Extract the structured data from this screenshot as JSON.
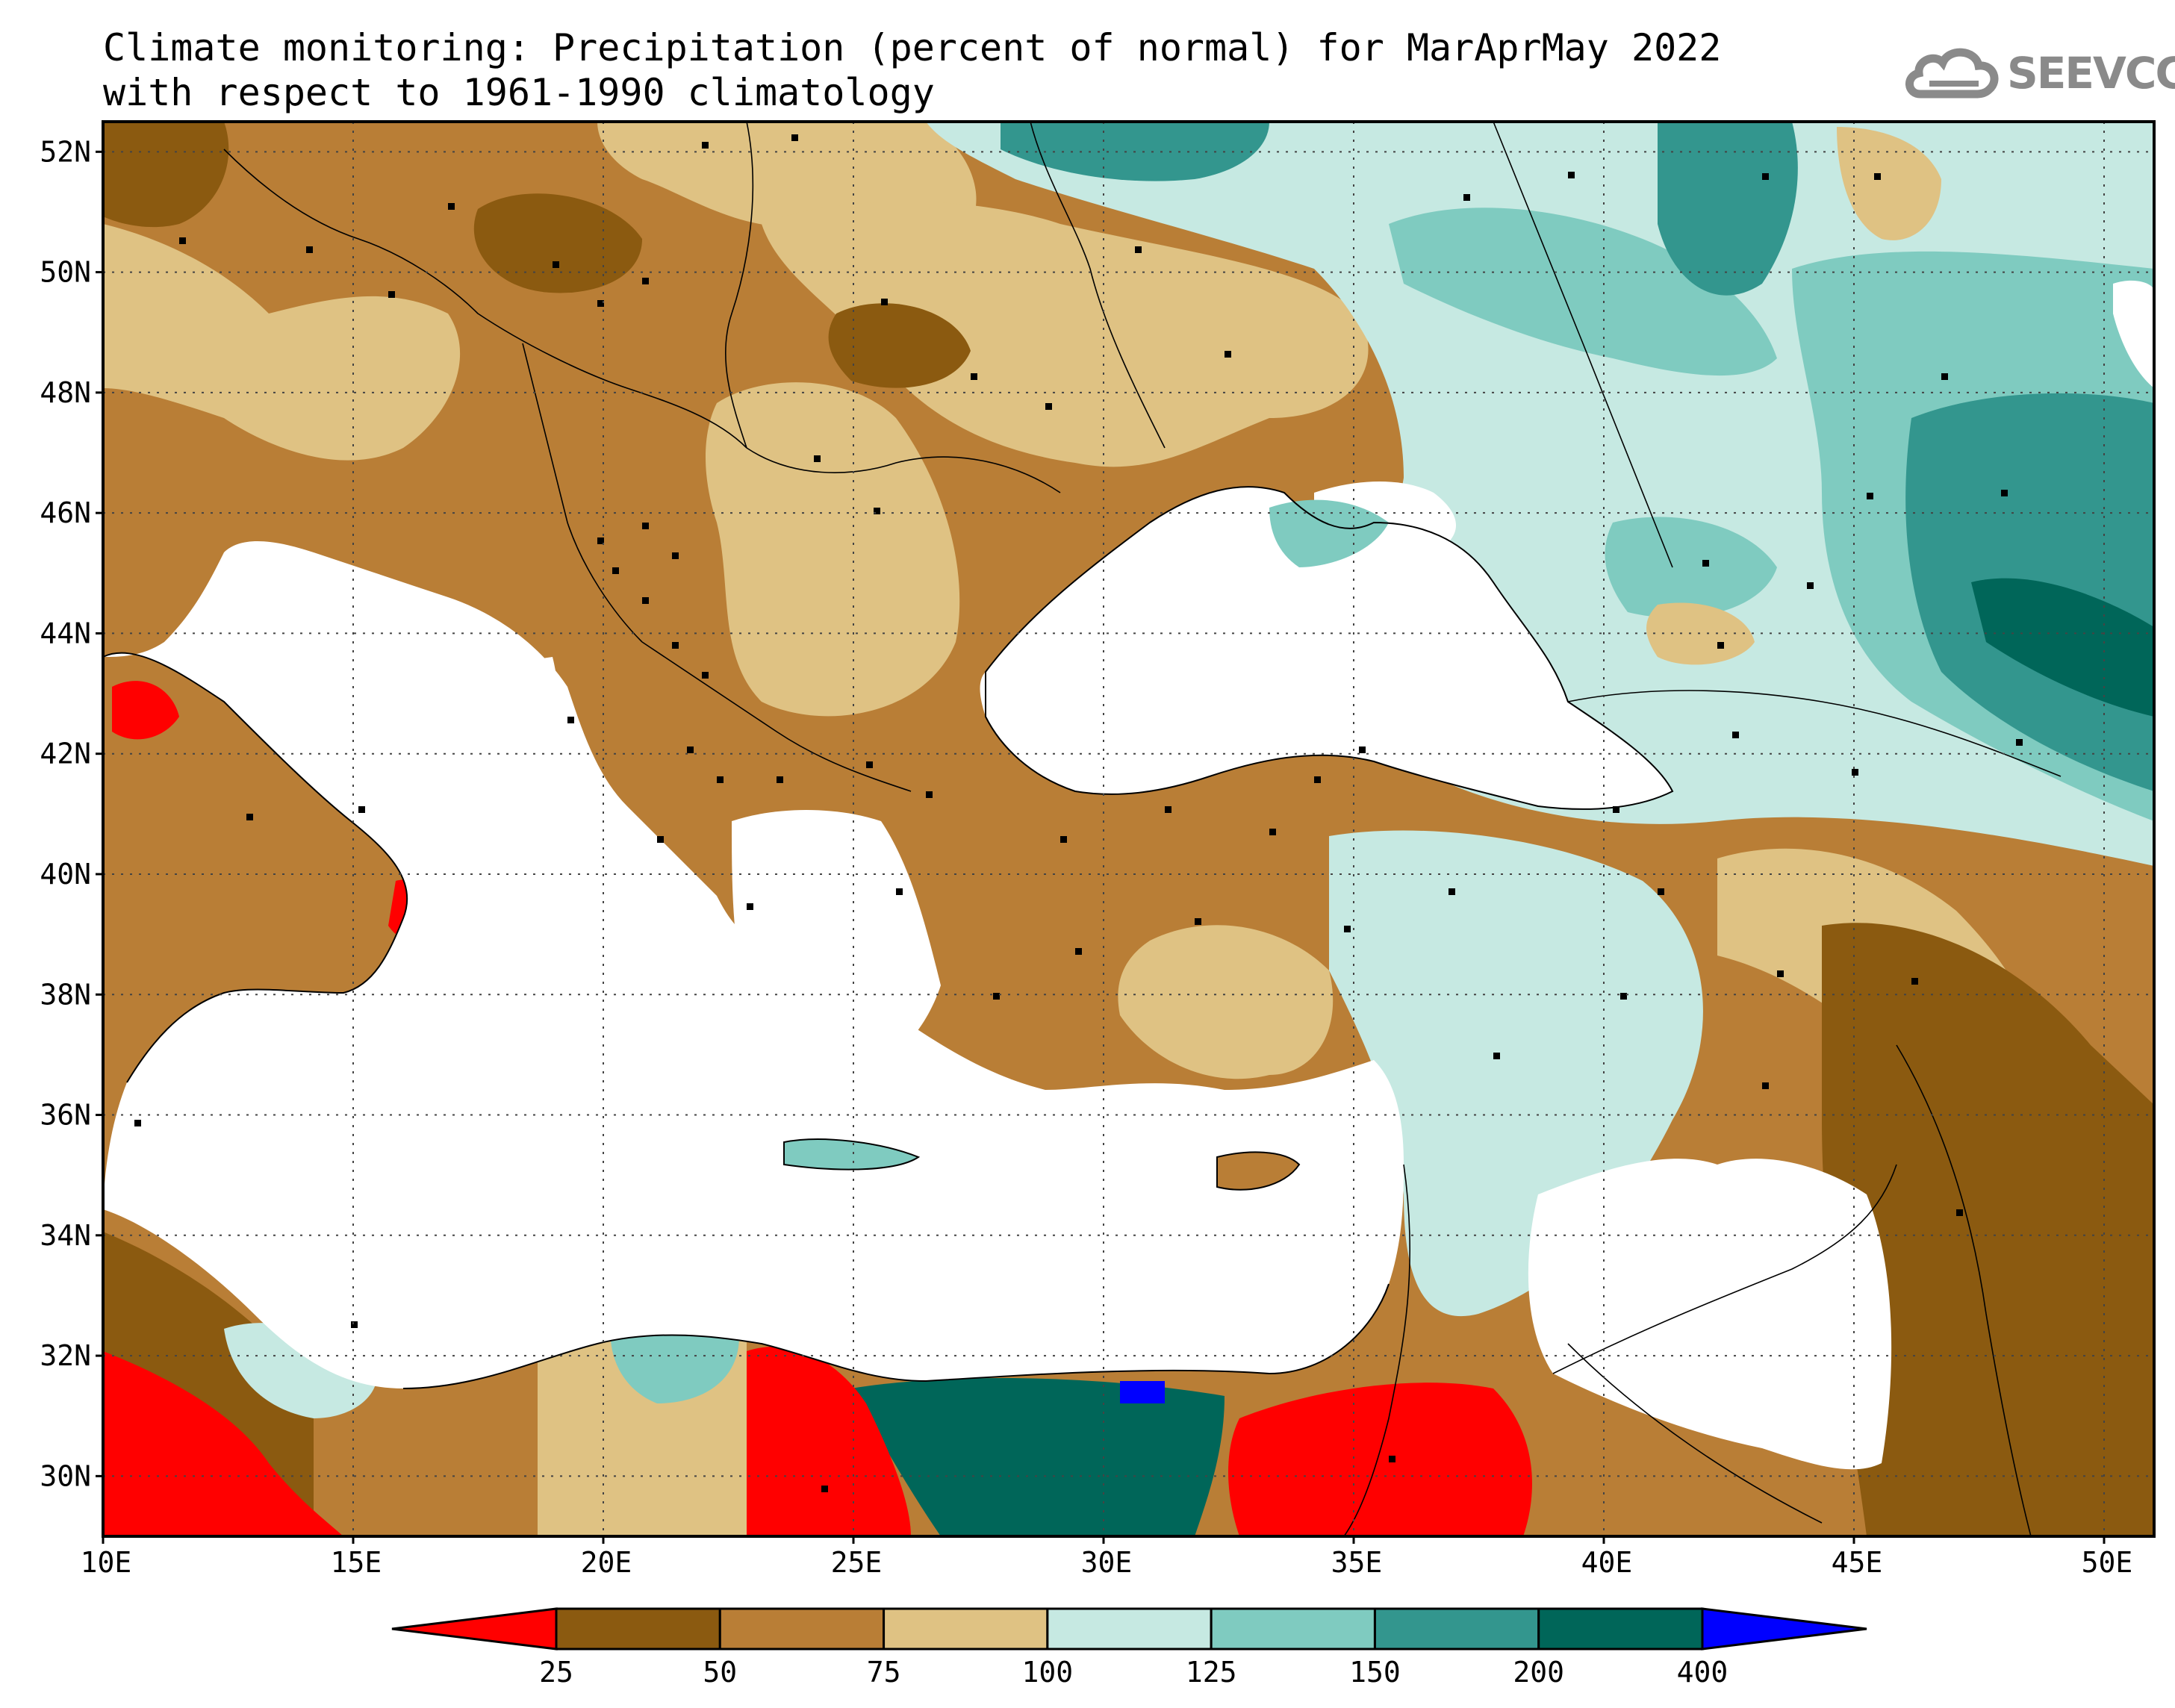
{
  "title": {
    "line1": "Climate monitoring: Precipitation (percent of normal) for MarAprMay 2022",
    "line2": "with respect to 1961-1990 climatology"
  },
  "logo": {
    "text": "SEEVCCC",
    "icon": "cloud-icon"
  },
  "map": {
    "lon_range": [
      10,
      51
    ],
    "lat_range": [
      29,
      52.5
    ],
    "lat_ticks": [
      {
        "value": 52,
        "label": "52N"
      },
      {
        "value": 50,
        "label": "50N"
      },
      {
        "value": 48,
        "label": "48N"
      },
      {
        "value": 46,
        "label": "46N"
      },
      {
        "value": 44,
        "label": "44N"
      },
      {
        "value": 42,
        "label": "42N"
      },
      {
        "value": 40,
        "label": "40N"
      },
      {
        "value": 38,
        "label": "38N"
      },
      {
        "value": 36,
        "label": "36N"
      },
      {
        "value": 34,
        "label": "34N"
      },
      {
        "value": 32,
        "label": "32N"
      },
      {
        "value": 30,
        "label": "30N"
      }
    ],
    "lon_ticks": [
      {
        "value": 10,
        "label": "10E"
      },
      {
        "value": 15,
        "label": "15E"
      },
      {
        "value": 20,
        "label": "20E"
      },
      {
        "value": 25,
        "label": "25E"
      },
      {
        "value": 30,
        "label": "30E"
      },
      {
        "value": 35,
        "label": "35E"
      },
      {
        "value": 40,
        "label": "40E"
      },
      {
        "value": 45,
        "label": "45E"
      },
      {
        "value": 50,
        "label": "50E"
      }
    ],
    "gridlines": true
  },
  "colorbar": {
    "colors": [
      "#ff0000",
      "#8b5a10",
      "#b97e36",
      "#dfc283",
      "#c6e9e2",
      "#7fcbc0",
      "#33968e",
      "#006659",
      "#0000ff"
    ],
    "labels": [
      "25",
      "50",
      "75",
      "100",
      "125",
      "150",
      "200",
      "400"
    ]
  }
}
